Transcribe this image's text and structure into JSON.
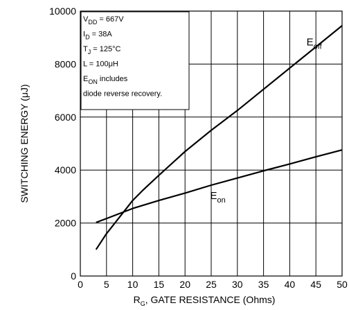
{
  "chart_data": {
    "type": "line",
    "xlabel": {
      "main": "R",
      "sub": "G",
      "rest": ", GATE RESISTANCE (Ohms)"
    },
    "ylabel": "SWITCHING ENERGY (μJ)",
    "xlim": [
      0,
      50
    ],
    "ylim": [
      0,
      10000
    ],
    "xticks": [
      0,
      5,
      10,
      15,
      20,
      25,
      30,
      35,
      40,
      45,
      50
    ],
    "yticks": [
      0,
      2000,
      4000,
      6000,
      8000,
      10000
    ],
    "grid": true,
    "series": [
      {
        "name": "E_off",
        "label_main": "E",
        "label_sub": "off",
        "x": [
          3,
          5,
          8,
          10,
          12,
          15,
          20,
          25,
          30,
          35,
          40,
          45,
          50
        ],
        "values": [
          1000,
          1600,
          2350,
          2850,
          3250,
          3800,
          4700,
          5500,
          6250,
          7050,
          7850,
          8650,
          9450
        ]
      },
      {
        "name": "E_on",
        "label_main": "E",
        "label_sub": "on",
        "x": [
          3,
          5,
          10,
          15,
          20,
          25,
          30,
          35,
          40,
          45,
          50
        ],
        "values": [
          2020,
          2170,
          2550,
          2850,
          3130,
          3430,
          3700,
          3970,
          4230,
          4500,
          4760
        ]
      }
    ],
    "annotation": {
      "lines": [
        {
          "main": "V",
          "sub": "DD",
          "rest": " = 667V"
        },
        {
          "main": "I",
          "sub": "D",
          "rest": " = 38A"
        },
        {
          "main": "T",
          "sub": "J",
          "rest": " = 125°C"
        },
        {
          "main": "L = 100μH",
          "sub": "",
          "rest": ""
        },
        {
          "main": "E",
          "sub": "ON",
          "rest": " includes"
        },
        {
          "main": "diode reverse recovery.",
          "sub": "",
          "rest": ""
        }
      ]
    }
  }
}
